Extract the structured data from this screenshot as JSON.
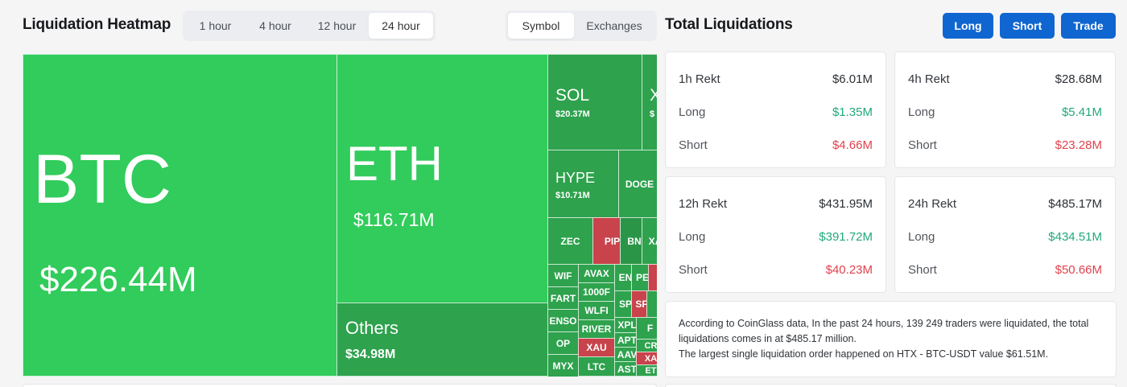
{
  "heatmap": {
    "title": "Liquidation Heatmap",
    "time_options": [
      "1 hour",
      "4 hour",
      "12 hour",
      "24 hour"
    ],
    "active_time": "24 hour",
    "view_options": [
      "Symbol",
      "Exchanges"
    ],
    "active_view": "Symbol",
    "tiles": {
      "btc": {
        "symbol": "BTC",
        "value": "$226.44M"
      },
      "eth": {
        "symbol": "ETH",
        "value": "$116.71M"
      },
      "others": {
        "symbol": "Others",
        "value": "$34.98M"
      },
      "sol": {
        "symbol": "SOL",
        "value": "$20.37M"
      },
      "xrp": {
        "symbol": "X",
        "value": "$"
      },
      "hype": {
        "symbol": "HYPE",
        "value": "$10.71M"
      },
      "doge": {
        "symbol": "DOGE"
      },
      "zec": {
        "symbol": "ZEC"
      },
      "pipe": {
        "symbol": "PIP"
      },
      "bnb": {
        "symbol": "BN"
      },
      "xa": {
        "symbol": "XA"
      },
      "wif": {
        "symbol": "WIF"
      },
      "avax": {
        "symbol": "AVAX"
      },
      "en": {
        "symbol": "EN"
      },
      "pe": {
        "symbol": "PE"
      },
      "fart": {
        "symbol": "FART"
      },
      "k1000": {
        "symbol": "1000F"
      },
      "sp": {
        "symbol": "SP"
      },
      "sr": {
        "symbol": "SF"
      },
      "wlfi": {
        "symbol": "WLFI"
      },
      "enso": {
        "symbol": "ENSO"
      },
      "river": {
        "symbol": "RIVER"
      },
      "xpl": {
        "symbol": "XPL"
      },
      "f": {
        "symbol": "F"
      },
      "apt": {
        "symbol": "APT"
      },
      "cr": {
        "symbol": "CR"
      },
      "op": {
        "symbol": "OP"
      },
      "xau": {
        "symbol": "XAU"
      },
      "aav": {
        "symbol": "AAV"
      },
      "xa2": {
        "symbol": "XA"
      },
      "myx": {
        "symbol": "MYX"
      },
      "ltc": {
        "symbol": "LTC"
      },
      "ast": {
        "symbol": "AST"
      },
      "et": {
        "symbol": "ET"
      }
    }
  },
  "totals": {
    "title": "Total Liquidations",
    "buttons": {
      "long": "Long",
      "short": "Short",
      "trade": "Trade"
    },
    "cards": {
      "h1": {
        "title": "1h Rekt",
        "total": "$6.01M",
        "long_label": "Long",
        "long": "$1.35M",
        "short_label": "Short",
        "short": "$4.66M"
      },
      "h4": {
        "title": "4h Rekt",
        "total": "$28.68M",
        "long_label": "Long",
        "long": "$5.41M",
        "short_label": "Short",
        "short": "$23.28M"
      },
      "h12": {
        "title": "12h Rekt",
        "total": "$431.95M",
        "long_label": "Long",
        "long": "$391.72M",
        "short_label": "Short",
        "short": "$40.23M"
      },
      "h24": {
        "title": "24h Rekt",
        "total": "$485.17M",
        "long_label": "Long",
        "long": "$434.51M",
        "short_label": "Short",
        "short": "$50.66M"
      }
    },
    "summary_line1": "According to CoinGlass data, In the past 24 hours, 139 249 traders were liquidated, the total liquidations comes in at $485.17 million.",
    "summary_line2": "The largest single liquidation order happened on HTX - BTC-USDT value $61.51M."
  },
  "colors": {
    "long": "#22a97a",
    "short": "#e1414d",
    "accent": "#1066d0",
    "tile_green": "#31cc5b",
    "tile_red": "#c8434b"
  }
}
